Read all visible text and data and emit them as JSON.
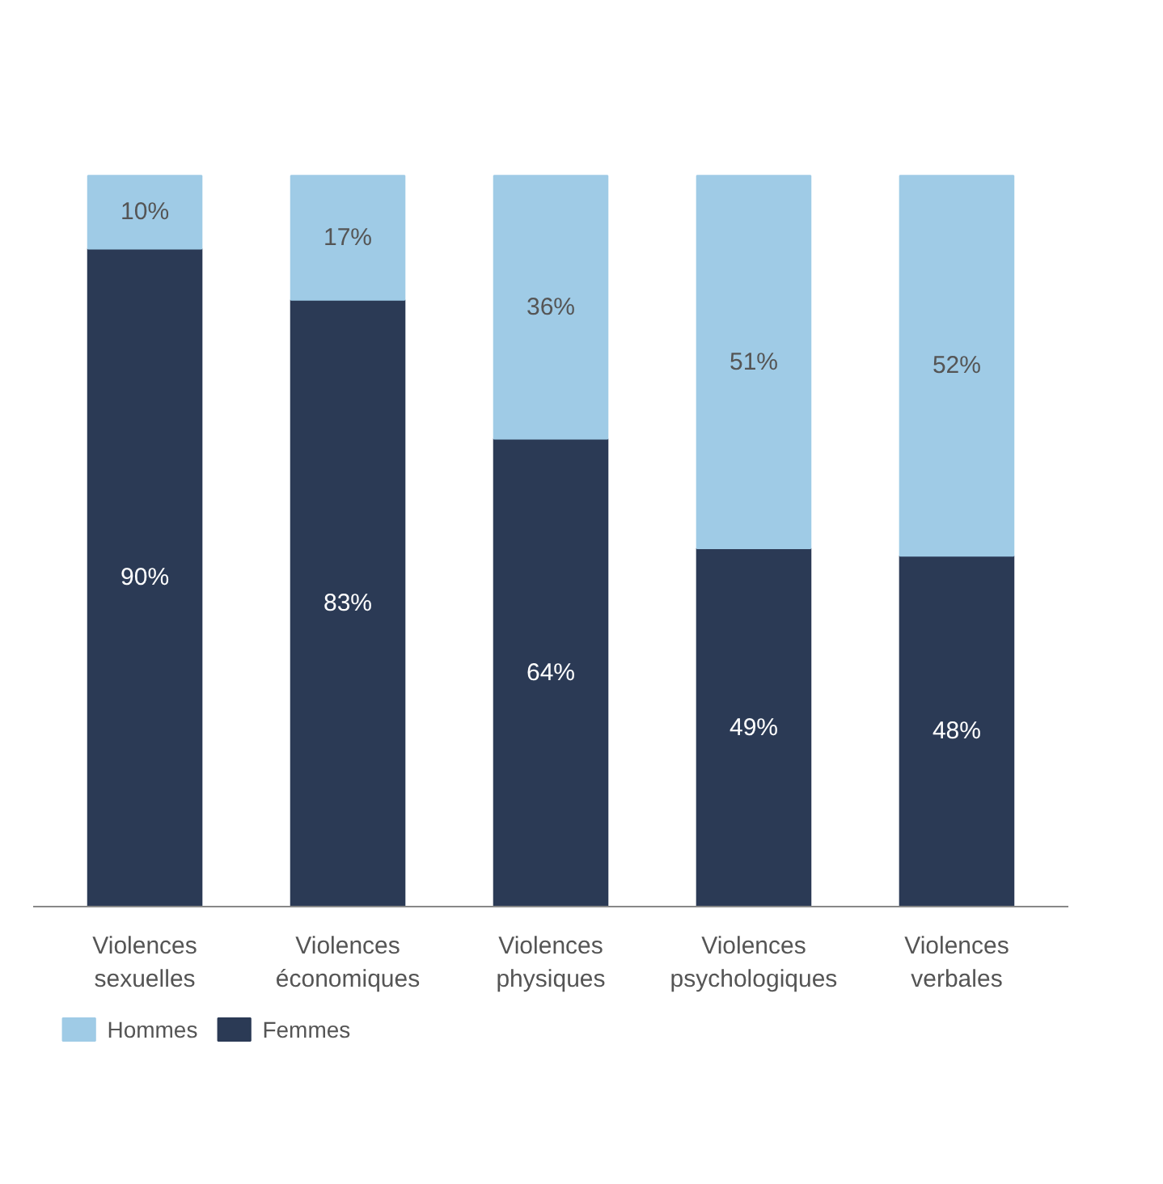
{
  "chart_data": {
    "type": "bar",
    "stacked": true,
    "data_labels": true,
    "legend": "bottom left",
    "grid": false,
    "categories": [
      "Violences sexuelles",
      "Violences économiques",
      "Violences physiques",
      "Violences psychologiques",
      "Violences verbales"
    ],
    "series": [
      {
        "name": "Femmes",
        "color": "#2b3a55",
        "values": [
          90,
          83,
          64,
          49,
          48
        ],
        "value_labels": [
          "90%",
          "83%",
          "64%",
          "49%",
          "48%"
        ]
      },
      {
        "name": "Hommes",
        "color": "#9fcbe6",
        "values": [
          10,
          17,
          36,
          51,
          52
        ],
        "value_labels": [
          "10%",
          "17%",
          "36%",
          "51%",
          "52%"
        ]
      }
    ]
  }
}
